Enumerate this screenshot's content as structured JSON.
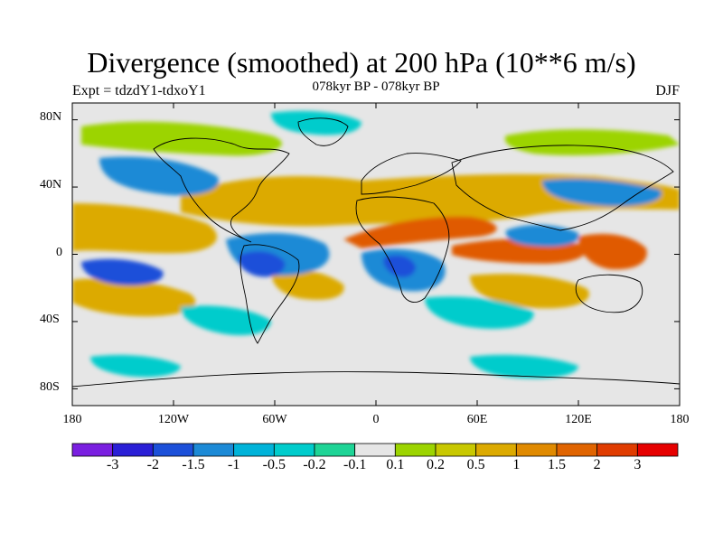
{
  "title": "Divergence (smoothed) at 200 hPa (10**6 m/s)",
  "subtitle_left": "Expt = tdzdY1-tdxoY1",
  "subtitle_center": "078kyr BP - 078kyr BP",
  "subtitle_right": "DJF",
  "map": {
    "projection": "cylindrical equidistant",
    "lon_range": [
      -180,
      180
    ],
    "lat_range": [
      -90,
      90
    ],
    "lat_tick_labels": [
      "80N",
      "40N",
      "0",
      "40S",
      "80S"
    ],
    "lon_tick_labels": [
      "180",
      "120W",
      "60W",
      "0",
      "60E",
      "120E",
      "180"
    ]
  },
  "colorbar": {
    "labels": [
      "-3",
      "-2",
      "-1.5",
      "-1",
      "-0.5",
      "-0.2",
      "-0.1",
      "0.1",
      "0.2",
      "0.5",
      "1",
      "1.5",
      "2",
      "3"
    ],
    "colors": [
      "#7a1fe0",
      "#2a1fd6",
      "#1c50d9",
      "#1c8ad6",
      "#00b3d9",
      "#00cccc",
      "#1ed496",
      "#e6e6e6",
      "#9cd400",
      "#c8c800",
      "#dcaa00",
      "#e08a00",
      "#e06400",
      "#e03c00",
      "#e60000"
    ]
  },
  "colors": {
    "neutral": "#e6e6e6",
    "strong_negative": "#1c50d9",
    "negative": "#1c8ad6",
    "weak_negative": "#00cccc",
    "weak_positive": "#9cd400",
    "positive": "#dcaa00",
    "strong_positive": "#e05a00",
    "coastline": "#000000"
  }
}
